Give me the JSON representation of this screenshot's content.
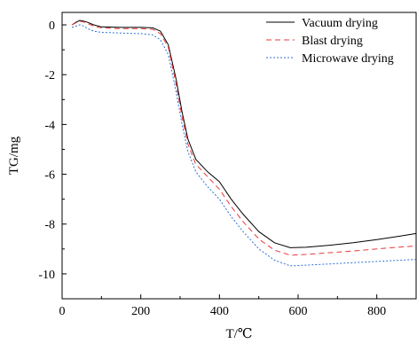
{
  "chart_data": {
    "type": "line",
    "xlabel": "T/℃",
    "ylabel": "TG/mg",
    "xlim": [
      0,
      900
    ],
    "ylim": [
      -11,
      0.5
    ],
    "x_ticks": [
      0,
      200,
      400,
      600,
      800
    ],
    "y_ticks": [
      0,
      -2,
      -4,
      -6,
      -8,
      -10
    ],
    "grid": false,
    "legend_position": "top-right",
    "series": [
      {
        "name": "Vacuum drying",
        "color": "#000000",
        "dash": "solid",
        "points": [
          [
            25,
            0
          ],
          [
            35,
            0.1
          ],
          [
            45,
            0.18
          ],
          [
            55,
            0.15
          ],
          [
            65,
            0.1
          ],
          [
            80,
            0
          ],
          [
            100,
            -0.08
          ],
          [
            150,
            -0.1
          ],
          [
            200,
            -0.1
          ],
          [
            230,
            -0.12
          ],
          [
            250,
            -0.25
          ],
          [
            270,
            -0.8
          ],
          [
            290,
            -2.2
          ],
          [
            305,
            -3.5
          ],
          [
            320,
            -4.6
          ],
          [
            340,
            -5.4
          ],
          [
            370,
            -5.9
          ],
          [
            400,
            -6.3
          ],
          [
            430,
            -7.0
          ],
          [
            460,
            -7.6
          ],
          [
            500,
            -8.3
          ],
          [
            540,
            -8.75
          ],
          [
            580,
            -8.95
          ],
          [
            620,
            -8.93
          ],
          [
            680,
            -8.85
          ],
          [
            740,
            -8.75
          ],
          [
            800,
            -8.62
          ],
          [
            860,
            -8.48
          ],
          [
            900,
            -8.38
          ]
        ]
      },
      {
        "name": "Blast drying",
        "color": "#e8393a",
        "dash": "6,4",
        "points": [
          [
            25,
            0
          ],
          [
            35,
            0.08
          ],
          [
            45,
            0.15
          ],
          [
            55,
            0.12
          ],
          [
            65,
            0.05
          ],
          [
            80,
            -0.05
          ],
          [
            100,
            -0.12
          ],
          [
            150,
            -0.15
          ],
          [
            200,
            -0.15
          ],
          [
            230,
            -0.18
          ],
          [
            250,
            -0.35
          ],
          [
            270,
            -0.9
          ],
          [
            290,
            -2.4
          ],
          [
            305,
            -3.7
          ],
          [
            320,
            -4.8
          ],
          [
            340,
            -5.6
          ],
          [
            370,
            -6.1
          ],
          [
            400,
            -6.6
          ],
          [
            430,
            -7.3
          ],
          [
            460,
            -7.9
          ],
          [
            500,
            -8.6
          ],
          [
            540,
            -9.05
          ],
          [
            580,
            -9.25
          ],
          [
            620,
            -9.22
          ],
          [
            680,
            -9.15
          ],
          [
            740,
            -9.08
          ],
          [
            800,
            -9.0
          ],
          [
            860,
            -8.92
          ],
          [
            900,
            -8.88
          ]
        ]
      },
      {
        "name": "Microwave drying",
        "color": "#2e6fd9",
        "dash": "2,2",
        "points": [
          [
            25,
            -0.1
          ],
          [
            35,
            -0.05
          ],
          [
            45,
            0
          ],
          [
            55,
            -0.05
          ],
          [
            65,
            -0.15
          ],
          [
            80,
            -0.25
          ],
          [
            100,
            -0.3
          ],
          [
            150,
            -0.33
          ],
          [
            200,
            -0.35
          ],
          [
            230,
            -0.4
          ],
          [
            250,
            -0.6
          ],
          [
            270,
            -1.2
          ],
          [
            290,
            -2.7
          ],
          [
            305,
            -4.0
          ],
          [
            320,
            -5.1
          ],
          [
            340,
            -5.9
          ],
          [
            370,
            -6.5
          ],
          [
            400,
            -7.0
          ],
          [
            430,
            -7.7
          ],
          [
            460,
            -8.3
          ],
          [
            500,
            -9.0
          ],
          [
            540,
            -9.45
          ],
          [
            580,
            -9.68
          ],
          [
            620,
            -9.65
          ],
          [
            680,
            -9.6
          ],
          [
            740,
            -9.55
          ],
          [
            800,
            -9.5
          ],
          [
            860,
            -9.45
          ],
          [
            900,
            -9.42
          ]
        ]
      }
    ]
  }
}
